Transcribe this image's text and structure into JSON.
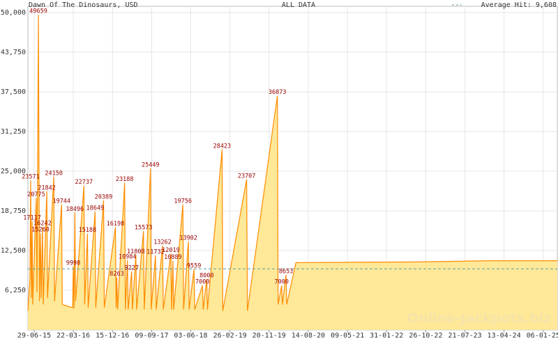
{
  "chart_data": {
    "type": "area",
    "title": "Dawn Of The Dinosaurs, USD",
    "subtitle": "ALL DATA",
    "watermark": "Online-Jackpots.biz",
    "average": {
      "label": "Average Hit:",
      "value": 9608,
      "value_label": "9,608",
      "color": "#5f9ea0"
    },
    "line_color": "#ff8c00",
    "fill_color": "#ffe898",
    "label_color": "#990000",
    "grid": true,
    "xlim": [
      "17-05-15",
      "12-04-25"
    ],
    "ylim": [
      0,
      50000
    ],
    "yticks": [
      {
        "value": 6250,
        "label": "6,250"
      },
      {
        "value": 12500,
        "label": "12,500"
      },
      {
        "value": 18750,
        "label": "18,750"
      },
      {
        "value": 25000,
        "label": "25,000"
      },
      {
        "value": 31250,
        "label": "31,250"
      },
      {
        "value": 37500,
        "label": "37,500"
      },
      {
        "value": 43750,
        "label": "43,750"
      },
      {
        "value": 50000,
        "label": "50,000"
      }
    ],
    "xticks": [
      "29-06-15",
      "22-03-16",
      "15-12-16",
      "09-09-17",
      "03-06-18",
      "26-02-19",
      "20-11-19",
      "14-08-20",
      "09-05-21",
      "31-01-22",
      "26-10-22",
      "21-07-23",
      "13-04-24",
      "06-01-25"
    ],
    "x": [
      "17-05-15",
      "31-05-15",
      "05-06-15",
      "10-06-15",
      "15-06-15",
      "19-06-15",
      "13-07-15",
      "18-07-15",
      "28-07-15",
      "04-08-15",
      "11-08-15",
      "16-08-15",
      "25-08-15",
      "30-08-15",
      "23-09-15",
      "28-09-15",
      "10-11-15",
      "15-11-15",
      "02-01-16",
      "07-01-16",
      "18-03-16",
      "22-03-16",
      "27-03-16",
      "02-04-16",
      "07-04-16",
      "03-06-16",
      "08-06-16",
      "27-06-16",
      "02-07-16",
      "18-08-16",
      "23-08-16",
      "15-10-16",
      "20-10-16",
      "04-01-17",
      "09-01-17",
      "14-01-17",
      "19-01-17",
      "08-03-17",
      "13-03-17",
      "27-03-17",
      "01-04-17",
      "25-04-17",
      "30-04-17",
      "24-05-17",
      "29-05-17",
      "15-07-17",
      "20-07-17",
      "01-09-17",
      "06-09-17",
      "05-10-17",
      "10-10-17",
      "22-11-17",
      "27-11-17",
      "18-01-18",
      "23-01-18",
      "01-02-18",
      "06-02-18",
      "10-04-18",
      "15-04-18",
      "18-05-18",
      "23-05-18",
      "25-06-18",
      "30-06-18",
      "22-08-18",
      "27-08-18",
      "20-09-18",
      "25-09-18",
      "03-01-19",
      "08-01-19",
      "20-06-19",
      "25-06-19",
      "16-01-20",
      "21-01-20",
      "14-02-20",
      "19-02-20",
      "15-03-20",
      "20-03-20",
      "22-05-20",
      "30-08-22",
      "19-01-24",
      "12-04-25"
    ],
    "values": [
      3000,
      8000,
      23571,
      5000,
      17117,
      4000,
      20775,
      6000,
      49659,
      4500,
      15260,
      5000,
      16242,
      4000,
      21842,
      5000,
      24150,
      4500,
      19744,
      4000,
      3500,
      9998,
      3400,
      18496,
      4500,
      22737,
      4000,
      15188,
      3500,
      18649,
      3500,
      20389,
      3500,
      16198,
      3500,
      8263,
      3200,
      23188,
      3200,
      10984,
      3200,
      9227,
      3200,
      11808,
      3200,
      15573,
      3200,
      25449,
      3200,
      11732,
      3200,
      13262,
      3200,
      12019,
      3200,
      10889,
      3200,
      19756,
      3200,
      13902,
      3200,
      9559,
      3200,
      7000,
      3200,
      8000,
      3200,
      28423,
      3000,
      23707,
      3000,
      36873,
      4000,
      7000,
      4000,
      8653,
      4000,
      10600,
      10700,
      10900,
      10900
    ]
  }
}
